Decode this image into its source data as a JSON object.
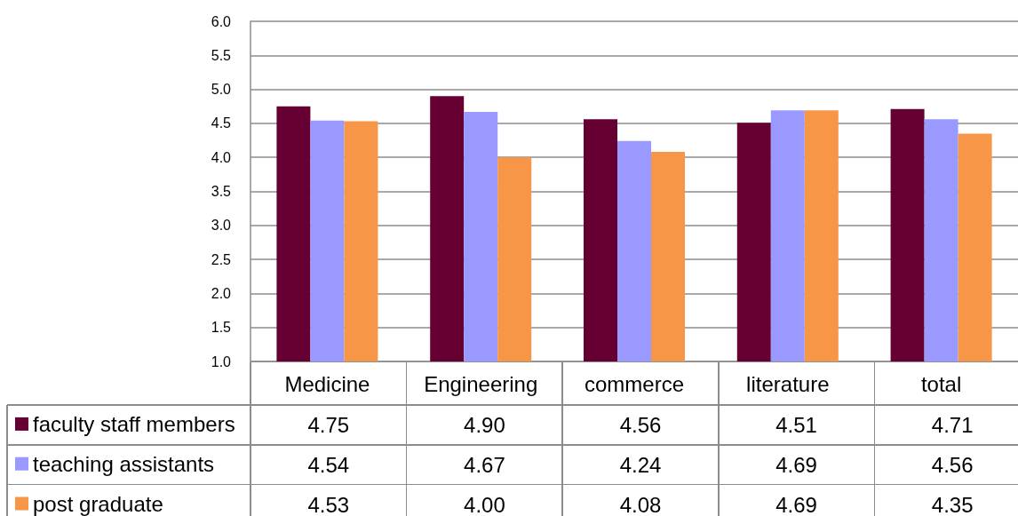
{
  "chart_data": {
    "type": "bar",
    "categories": [
      "Medicine",
      "Engineering",
      "commerce",
      "literature",
      "total"
    ],
    "series": [
      {
        "name": "faculty staff members",
        "color": "#660033",
        "values": [
          4.75,
          4.9,
          4.56,
          4.51,
          4.71
        ],
        "value_labels": [
          "4.75",
          "4.90",
          "4.56",
          "4.51",
          "4.71"
        ]
      },
      {
        "name": "teaching assistants",
        "color": "#9999ff",
        "values": [
          4.54,
          4.67,
          4.24,
          4.69,
          4.56
        ],
        "value_labels": [
          "4.54",
          "4.67",
          "4.24",
          "4.69",
          "4.56"
        ]
      },
      {
        "name": "post graduate",
        "color": "#f79646",
        "values": [
          4.53,
          4.0,
          4.08,
          4.69,
          4.35
        ],
        "value_labels": [
          "4.53",
          "4.00",
          "4.08",
          "4.69",
          "4.35"
        ]
      }
    ],
    "ylim": [
      1,
      6
    ],
    "yticks": [
      {
        "value": 1,
        "label": "1.0"
      },
      {
        "value": 1.5,
        "label": "1.5"
      },
      {
        "value": 2,
        "label": "2.0"
      },
      {
        "value": 2.5,
        "label": "2.5"
      },
      {
        "value": 3,
        "label": "3.0"
      },
      {
        "value": 3.5,
        "label": "3.5"
      },
      {
        "value": 4,
        "label": "4.0"
      },
      {
        "value": 4.5,
        "label": "4.5"
      },
      {
        "value": 5,
        "label": "5.0"
      },
      {
        "value": 5.5,
        "label": "5.5"
      },
      {
        "value": 6,
        "label": "6.0"
      }
    ],
    "grid": "y",
    "legend": "bottom left"
  }
}
